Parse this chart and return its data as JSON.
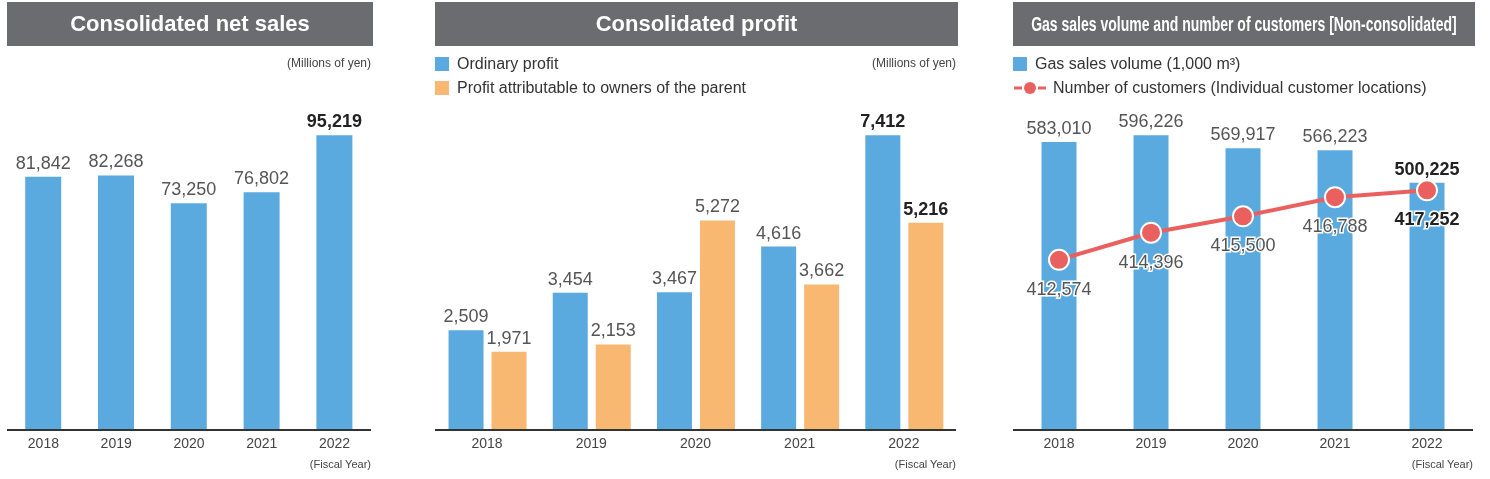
{
  "chart_data": [
    {
      "type": "bar",
      "title": "Consolidated net sales",
      "ylabel": "(Millions of yen)",
      "xlabel": "(Fiscal Year)",
      "categories": [
        "2018",
        "2019",
        "2020",
        "2021",
        "2022"
      ],
      "values": [
        81842,
        82268,
        73250,
        76802,
        95219
      ],
      "value_labels": [
        "81,842",
        "82,268",
        "73,250",
        "76,802",
        "95,219"
      ],
      "color": "#5aaadf"
    },
    {
      "type": "bar",
      "title": "Consolidated profit",
      "ylabel": "(Millions of yen)",
      "xlabel": "(Fiscal Year)",
      "categories": [
        "2018",
        "2019",
        "2020",
        "2021",
        "2022"
      ],
      "legend": "top left",
      "series": [
        {
          "name": "Ordinary profit",
          "color": "#5aaadf",
          "values": [
            2509,
            3454,
            3467,
            4616,
            7412
          ],
          "value_labels": [
            "2,509",
            "3,454",
            "3,467",
            "4,616",
            "7,412"
          ]
        },
        {
          "name": "Profit attributable to owners of the parent",
          "color": "#f9b871",
          "values": [
            1971,
            2153,
            5272,
            3662,
            5216
          ],
          "value_labels": [
            "1,971",
            "2,153",
            "5,272",
            "3,662",
            "5,216"
          ]
        }
      ]
    },
    {
      "type": "bar",
      "title": "Gas sales volume and number of customers [Non-consolidated]",
      "xlabel": "(Fiscal Year)",
      "categories": [
        "2018",
        "2019",
        "2020",
        "2021",
        "2022"
      ],
      "legend": "top left",
      "marker": "circle",
      "series": [
        {
          "name": "Gas sales volume (1,000 m³)",
          "color": "#5aaadf",
          "values": [
            583010,
            596226,
            569917,
            566223,
            500225
          ],
          "value_labels": [
            "583,010",
            "596,226",
            "569,917",
            "566,223",
            "500,225"
          ]
        },
        {
          "name": "Number of customers (Individual customer locations)",
          "type": "line",
          "axis": "y2",
          "color": "#e9605f",
          "values": [
            412574,
            414396,
            415500,
            416788,
            417252
          ],
          "value_labels": [
            "412,574",
            "414,396",
            "415,500",
            "416,788",
            "417,252"
          ]
        }
      ]
    }
  ]
}
